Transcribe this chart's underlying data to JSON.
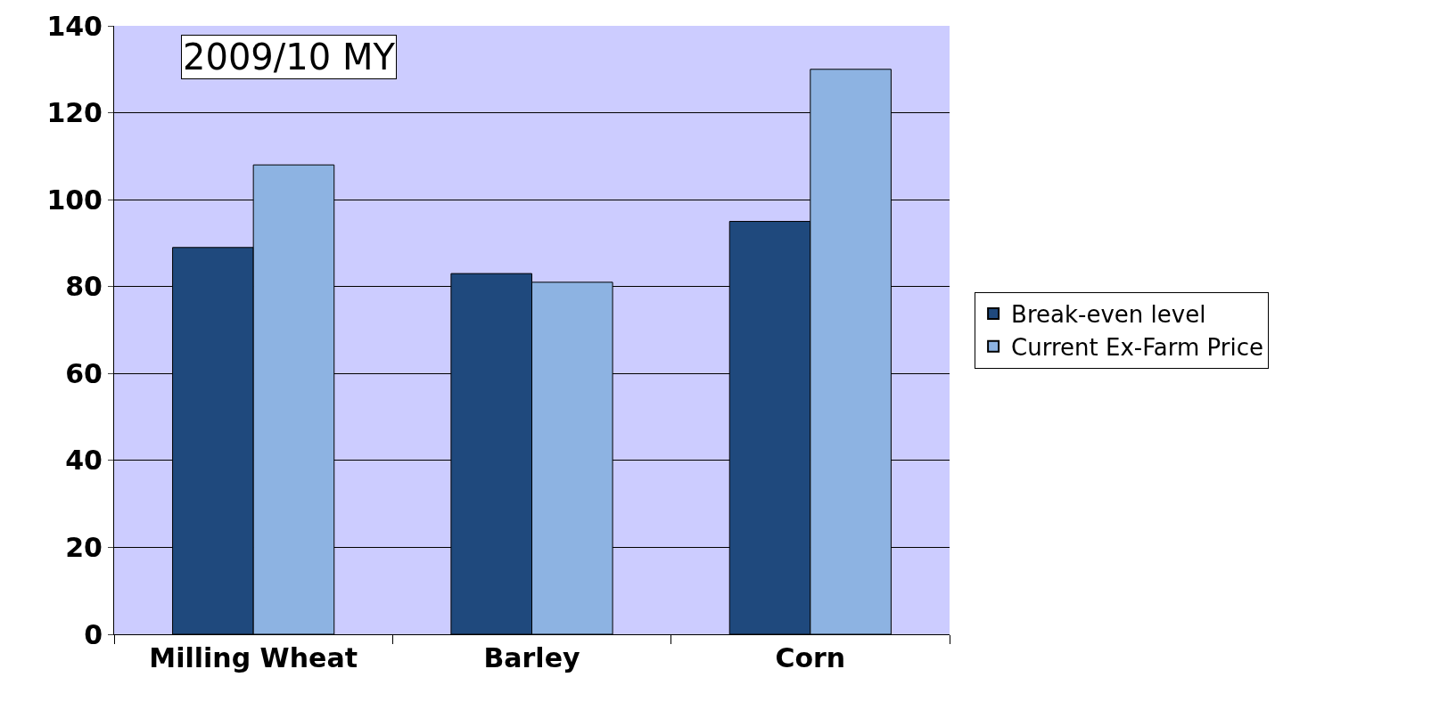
{
  "chart_data": {
    "type": "bar",
    "categories": [
      "Milling Wheat",
      "Barley",
      "Corn"
    ],
    "series": [
      {
        "name": "Break-even level",
        "color": "#1f497d",
        "values": [
          89,
          83,
          95
        ]
      },
      {
        "name": "Current Ex-Farm Price",
        "color": "#8db3e2",
        "values": [
          108,
          81,
          130
        ]
      }
    ],
    "ylim": [
      0,
      140
    ],
    "yticks": [
      0,
      20,
      40,
      60,
      80,
      100,
      120,
      140
    ],
    "grid": "y",
    "legend": "right",
    "annotations": [
      "2009/10 MY"
    ]
  }
}
